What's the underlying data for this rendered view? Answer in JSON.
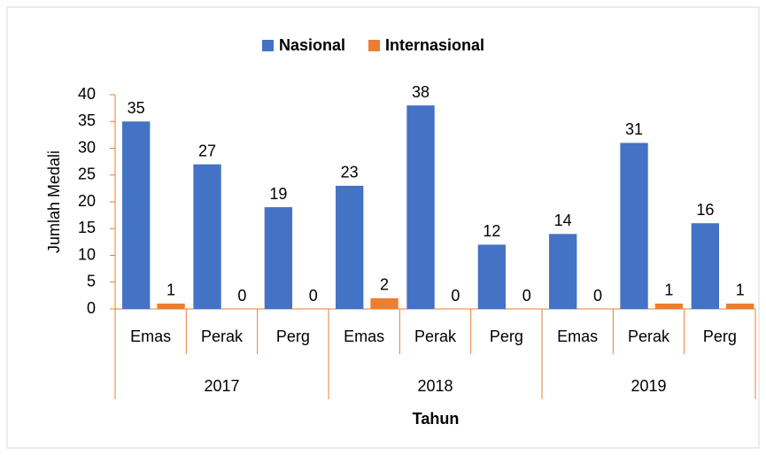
{
  "chart_data": {
    "type": "bar",
    "x_label": "Tahun",
    "y_label": "Jumlah Medali",
    "groups": [
      {
        "name": "2017",
        "categories": [
          "Emas",
          "Perak",
          "Perg"
        ]
      },
      {
        "name": "2018",
        "categories": [
          "Emas",
          "Perak",
          "Perg"
        ]
      },
      {
        "name": "2019",
        "categories": [
          "Emas",
          "Perak",
          "Perg"
        ]
      }
    ],
    "series": [
      {
        "name": "Nasional",
        "color": "#4472C4",
        "values": [
          35,
          27,
          19,
          23,
          38,
          12,
          14,
          31,
          16
        ]
      },
      {
        "name": "Internasional",
        "color": "#ED7D31",
        "values": [
          1,
          0,
          0,
          2,
          0,
          0,
          0,
          1,
          1
        ]
      }
    ],
    "ylim": [
      0,
      40
    ],
    "yticks": [
      0,
      5,
      10,
      15,
      20,
      25,
      30,
      35,
      40
    ],
    "grid": false,
    "legend": "top",
    "axis_color": "#ED7D31"
  }
}
